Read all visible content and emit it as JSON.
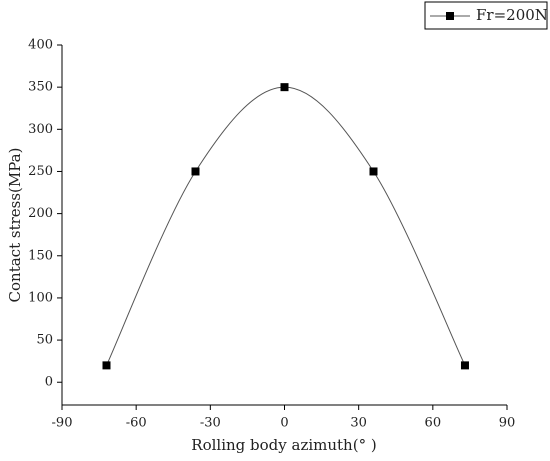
{
  "chart_data": {
    "type": "line",
    "smooth": true,
    "markers": true,
    "x_label": "Rolling body azimuth(° )",
    "y_label": "Contact stress(MPa)",
    "x": [
      -72,
      -36,
      0,
      36,
      73
    ],
    "series": [
      {
        "name": "Fr=200N",
        "color": "#000000",
        "line_color": "#555555",
        "values": [
          20,
          250,
          350,
          250,
          20
        ]
      }
    ],
    "xlim": [
      -90,
      90
    ],
    "xticks": [
      -90,
      -60,
      -30,
      0,
      30,
      60,
      90
    ],
    "ylim": [
      -27,
      400
    ],
    "yticks": [
      0,
      50,
      100,
      150,
      200,
      250,
      300,
      350,
      400
    ],
    "legend": "top-right"
  }
}
